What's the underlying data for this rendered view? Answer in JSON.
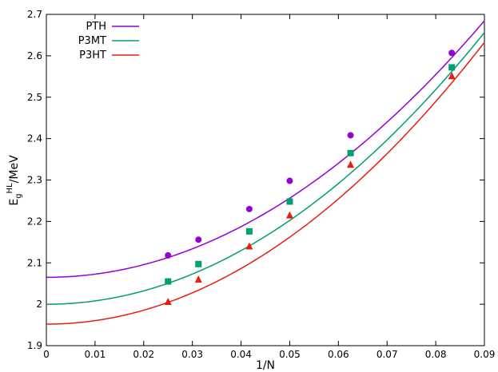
{
  "chart_data": {
    "type": "scatter",
    "xlabel": "1/N",
    "ylabel": {
      "base": "E",
      "sub": "g",
      "sup": "HL",
      "rest": "/MeV"
    },
    "xlim": [
      0,
      0.09
    ],
    "ylim": [
      1.9,
      2.7
    ],
    "xticks": [
      "0",
      "0.01",
      "0.02",
      "0.03",
      "0.04",
      "0.05",
      "0.06",
      "0.07",
      "0.08",
      "0.09"
    ],
    "yticks": [
      "1.9",
      "2",
      "2.1",
      "2.2",
      "2.3",
      "2.4",
      "2.5",
      "2.6",
      "2.7"
    ],
    "grid": false,
    "legend_position": "top-left",
    "series": [
      {
        "name": "PTH",
        "color": "#9400d3",
        "marker": "circle",
        "points": [
          [
            0.025,
            2.118
          ],
          [
            0.03125,
            2.156
          ],
          [
            0.0417,
            2.23
          ],
          [
            0.05,
            2.298
          ],
          [
            0.0625,
            2.408
          ],
          [
            0.0833,
            2.607
          ]
        ],
        "fit_curve": {
          "y0": 2.065,
          "quad_coefficient": 76.5
        }
      },
      {
        "name": "P3MT",
        "color": "#009e73",
        "marker": "square",
        "points": [
          [
            0.025,
            2.055
          ],
          [
            0.03125,
            2.097
          ],
          [
            0.0417,
            2.176
          ],
          [
            0.05,
            2.248
          ],
          [
            0.0625,
            2.365
          ],
          [
            0.0833,
            2.572
          ]
        ],
        "fit_curve": {
          "y0": 2.0,
          "quad_coefficient": 81.0
        }
      },
      {
        "name": "P3HT",
        "color": "#e51e10",
        "marker": "triangle",
        "points": [
          [
            0.025,
            2.006
          ],
          [
            0.03125,
            2.06
          ],
          [
            0.0417,
            2.14
          ],
          [
            0.05,
            2.215
          ],
          [
            0.0625,
            2.337
          ],
          [
            0.0833,
            2.551
          ]
        ],
        "fit_curve": {
          "y0": 1.952,
          "quad_coefficient": 84.0
        }
      }
    ]
  }
}
